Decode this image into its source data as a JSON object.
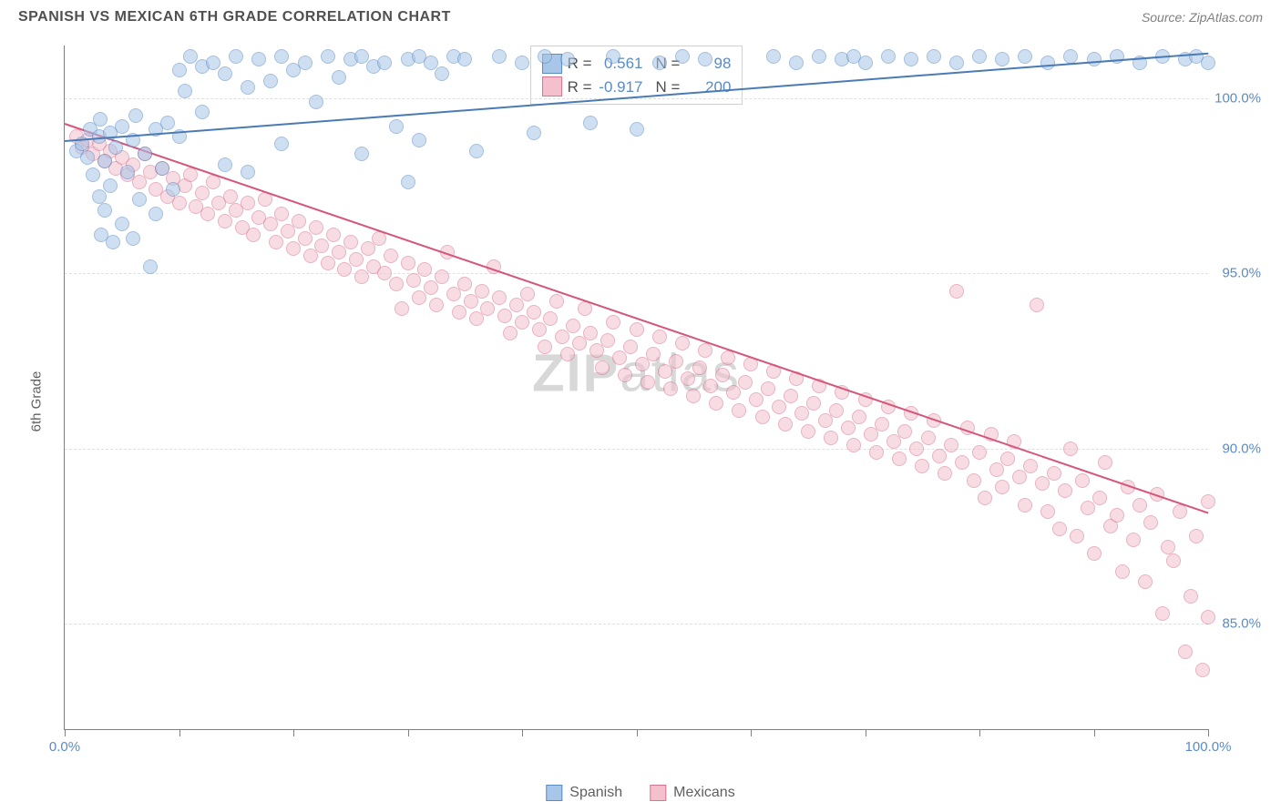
{
  "title": "SPANISH VS MEXICAN 6TH GRADE CORRELATION CHART",
  "source": "Source: ZipAtlas.com",
  "y_axis_label": "6th Grade",
  "watermark_a": "ZIP",
  "watermark_b": "atlas",
  "chart": {
    "type": "scatter",
    "background_color": "#ffffff",
    "grid_color": "#e0e0e0",
    "axis_color": "#808080",
    "tick_label_color": "#5b8bc5",
    "xlim": [
      0,
      100
    ],
    "ylim": [
      82,
      101.5
    ],
    "x_ticks": [
      0,
      10,
      20,
      30,
      40,
      50,
      60,
      70,
      80,
      90,
      100
    ],
    "x_tick_labels": {
      "0": "0.0%",
      "100": "100.0%"
    },
    "y_ticks": [
      85,
      90,
      95,
      100
    ],
    "y_tick_labels": {
      "85": "85.0%",
      "90": "90.0%",
      "95": "95.0%",
      "100": "100.0%"
    },
    "point_radius": 8,
    "point_opacity": 0.55,
    "series": {
      "spanish": {
        "label": "Spanish",
        "color": "#7ba8d6",
        "fill": "#a8c6e8",
        "border": "#5b8bc5",
        "R": "0.561",
        "N": "98",
        "trend": {
          "x1": 0,
          "y1": 98.8,
          "x2": 100,
          "y2": 101.3,
          "color": "#4a7bb5",
          "width": 2
        },
        "points": [
          [
            1,
            98.5
          ],
          [
            1.5,
            98.7
          ],
          [
            2,
            98.3
          ],
          [
            2.2,
            99.1
          ],
          [
            2.5,
            97.8
          ],
          [
            3,
            98.9
          ],
          [
            3,
            97.2
          ],
          [
            3.1,
            99.4
          ],
          [
            3.2,
            96.1
          ],
          [
            3.5,
            98.2
          ],
          [
            3.5,
            96.8
          ],
          [
            4,
            99.0
          ],
          [
            4,
            97.5
          ],
          [
            4.2,
            95.9
          ],
          [
            4.5,
            98.6
          ],
          [
            5,
            99.2
          ],
          [
            5,
            96.4
          ],
          [
            5.5,
            97.9
          ],
          [
            6,
            98.8
          ],
          [
            6,
            96.0
          ],
          [
            6.2,
            99.5
          ],
          [
            6.5,
            97.1
          ],
          [
            7,
            98.4
          ],
          [
            7.5,
            95.2
          ],
          [
            8,
            99.1
          ],
          [
            8,
            96.7
          ],
          [
            8.5,
            98.0
          ],
          [
            9,
            99.3
          ],
          [
            9.5,
            97.4
          ],
          [
            10,
            98.9
          ],
          [
            10,
            100.8
          ],
          [
            10.5,
            100.2
          ],
          [
            11,
            101.2
          ],
          [
            12,
            100.9
          ],
          [
            12,
            99.6
          ],
          [
            13,
            101.0
          ],
          [
            14,
            98.1
          ],
          [
            14,
            100.7
          ],
          [
            15,
            101.2
          ],
          [
            16,
            100.3
          ],
          [
            16,
            97.9
          ],
          [
            17,
            101.1
          ],
          [
            18,
            100.5
          ],
          [
            19,
            98.7
          ],
          [
            19,
            101.2
          ],
          [
            20,
            100.8
          ],
          [
            21,
            101.0
          ],
          [
            22,
            99.9
          ],
          [
            23,
            101.2
          ],
          [
            24,
            100.6
          ],
          [
            25,
            101.1
          ],
          [
            26,
            98.4
          ],
          [
            26,
            101.2
          ],
          [
            27,
            100.9
          ],
          [
            28,
            101.0
          ],
          [
            29,
            99.2
          ],
          [
            30,
            101.1
          ],
          [
            30,
            97.6
          ],
          [
            31,
            101.2
          ],
          [
            31,
            98.8
          ],
          [
            32,
            101.0
          ],
          [
            33,
            100.7
          ],
          [
            34,
            101.2
          ],
          [
            35,
            101.1
          ],
          [
            36,
            98.5
          ],
          [
            38,
            101.2
          ],
          [
            40,
            101.0
          ],
          [
            41,
            99.0
          ],
          [
            42,
            101.2
          ],
          [
            44,
            101.1
          ],
          [
            46,
            99.3
          ],
          [
            48,
            101.2
          ],
          [
            50,
            99.1
          ],
          [
            52,
            101.0
          ],
          [
            54,
            101.2
          ],
          [
            56,
            101.1
          ],
          [
            62,
            101.2
          ],
          [
            64,
            101.0
          ],
          [
            66,
            101.2
          ],
          [
            68,
            101.1
          ],
          [
            69,
            101.2
          ],
          [
            70,
            101.0
          ],
          [
            72,
            101.2
          ],
          [
            74,
            101.1
          ],
          [
            76,
            101.2
          ],
          [
            78,
            101.0
          ],
          [
            80,
            101.2
          ],
          [
            82,
            101.1
          ],
          [
            84,
            101.2
          ],
          [
            86,
            101.0
          ],
          [
            88,
            101.2
          ],
          [
            90,
            101.1
          ],
          [
            92,
            101.2
          ],
          [
            94,
            101.0
          ],
          [
            96,
            101.2
          ],
          [
            98,
            101.1
          ],
          [
            99,
            101.2
          ],
          [
            100,
            101.0
          ]
        ]
      },
      "mexicans": {
        "label": "Mexicans",
        "color": "#e89aad",
        "fill": "#f4c0ce",
        "border": "#d67590",
        "R": "-0.917",
        "N": "200",
        "trend": {
          "x1": 0,
          "y1": 99.3,
          "x2": 100,
          "y2": 88.2,
          "color": "#d6557a",
          "width": 2
        },
        "points": [
          [
            1,
            98.9
          ],
          [
            1.5,
            98.6
          ],
          [
            2,
            98.8
          ],
          [
            2.5,
            98.4
          ],
          [
            3,
            98.7
          ],
          [
            3.5,
            98.2
          ],
          [
            4,
            98.5
          ],
          [
            4.5,
            98.0
          ],
          [
            5,
            98.3
          ],
          [
            5.5,
            97.8
          ],
          [
            6,
            98.1
          ],
          [
            6.5,
            97.6
          ],
          [
            7,
            98.4
          ],
          [
            7.5,
            97.9
          ],
          [
            8,
            97.4
          ],
          [
            8.5,
            98.0
          ],
          [
            9,
            97.2
          ],
          [
            9.5,
            97.7
          ],
          [
            10,
            97.0
          ],
          [
            10.5,
            97.5
          ],
          [
            11,
            97.8
          ],
          [
            11.5,
            96.9
          ],
          [
            12,
            97.3
          ],
          [
            12.5,
            96.7
          ],
          [
            13,
            97.6
          ],
          [
            13.5,
            97.0
          ],
          [
            14,
            96.5
          ],
          [
            14.5,
            97.2
          ],
          [
            15,
            96.8
          ],
          [
            15.5,
            96.3
          ],
          [
            16,
            97.0
          ],
          [
            16.5,
            96.1
          ],
          [
            17,
            96.6
          ],
          [
            17.5,
            97.1
          ],
          [
            18,
            96.4
          ],
          [
            18.5,
            95.9
          ],
          [
            19,
            96.7
          ],
          [
            19.5,
            96.2
          ],
          [
            20,
            95.7
          ],
          [
            20.5,
            96.5
          ],
          [
            21,
            96.0
          ],
          [
            21.5,
            95.5
          ],
          [
            22,
            96.3
          ],
          [
            22.5,
            95.8
          ],
          [
            23,
            95.3
          ],
          [
            23.5,
            96.1
          ],
          [
            24,
            95.6
          ],
          [
            24.5,
            95.1
          ],
          [
            25,
            95.9
          ],
          [
            25.5,
            95.4
          ],
          [
            26,
            94.9
          ],
          [
            26.5,
            95.7
          ],
          [
            27,
            95.2
          ],
          [
            27.5,
            96.0
          ],
          [
            28,
            95.0
          ],
          [
            28.5,
            95.5
          ],
          [
            29,
            94.7
          ],
          [
            29.5,
            94.0
          ],
          [
            30,
            95.3
          ],
          [
            30.5,
            94.8
          ],
          [
            31,
            94.3
          ],
          [
            31.5,
            95.1
          ],
          [
            32,
            94.6
          ],
          [
            32.5,
            94.1
          ],
          [
            33,
            94.9
          ],
          [
            33.5,
            95.6
          ],
          [
            34,
            94.4
          ],
          [
            34.5,
            93.9
          ],
          [
            35,
            94.7
          ],
          [
            35.5,
            94.2
          ],
          [
            36,
            93.7
          ],
          [
            36.5,
            94.5
          ],
          [
            37,
            94.0
          ],
          [
            37.5,
            95.2
          ],
          [
            38,
            94.3
          ],
          [
            38.5,
            93.8
          ],
          [
            39,
            93.3
          ],
          [
            39.5,
            94.1
          ],
          [
            40,
            93.6
          ],
          [
            40.5,
            94.4
          ],
          [
            41,
            93.9
          ],
          [
            41.5,
            93.4
          ],
          [
            42,
            92.9
          ],
          [
            42.5,
            93.7
          ],
          [
            43,
            94.2
          ],
          [
            43.5,
            93.2
          ],
          [
            44,
            92.7
          ],
          [
            44.5,
            93.5
          ],
          [
            45,
            93.0
          ],
          [
            45.5,
            94.0
          ],
          [
            46,
            93.3
          ],
          [
            46.5,
            92.8
          ],
          [
            47,
            92.3
          ],
          [
            47.5,
            93.1
          ],
          [
            48,
            93.6
          ],
          [
            48.5,
            92.6
          ],
          [
            49,
            92.1
          ],
          [
            49.5,
            92.9
          ],
          [
            50,
            93.4
          ],
          [
            50.5,
            92.4
          ],
          [
            51,
            91.9
          ],
          [
            51.5,
            92.7
          ],
          [
            52,
            93.2
          ],
          [
            52.5,
            92.2
          ],
          [
            53,
            91.7
          ],
          [
            53.5,
            92.5
          ],
          [
            54,
            93.0
          ],
          [
            54.5,
            92.0
          ],
          [
            55,
            91.5
          ],
          [
            55.5,
            92.3
          ],
          [
            56,
            92.8
          ],
          [
            56.5,
            91.8
          ],
          [
            57,
            91.3
          ],
          [
            57.5,
            92.1
          ],
          [
            58,
            92.6
          ],
          [
            58.5,
            91.6
          ],
          [
            59,
            91.1
          ],
          [
            59.5,
            91.9
          ],
          [
            60,
            92.4
          ],
          [
            60.5,
            91.4
          ],
          [
            61,
            90.9
          ],
          [
            61.5,
            91.7
          ],
          [
            62,
            92.2
          ],
          [
            62.5,
            91.2
          ],
          [
            63,
            90.7
          ],
          [
            63.5,
            91.5
          ],
          [
            64,
            92.0
          ],
          [
            64.5,
            91.0
          ],
          [
            65,
            90.5
          ],
          [
            65.5,
            91.3
          ],
          [
            66,
            91.8
          ],
          [
            66.5,
            90.8
          ],
          [
            67,
            90.3
          ],
          [
            67.5,
            91.1
          ],
          [
            68,
            91.6
          ],
          [
            68.5,
            90.6
          ],
          [
            69,
            90.1
          ],
          [
            69.5,
            90.9
          ],
          [
            70,
            91.4
          ],
          [
            70.5,
            90.4
          ],
          [
            71,
            89.9
          ],
          [
            71.5,
            90.7
          ],
          [
            72,
            91.2
          ],
          [
            72.5,
            90.2
          ],
          [
            73,
            89.7
          ],
          [
            73.5,
            90.5
          ],
          [
            74,
            91.0
          ],
          [
            74.5,
            90.0
          ],
          [
            75,
            89.5
          ],
          [
            75.5,
            90.3
          ],
          [
            76,
            90.8
          ],
          [
            76.5,
            89.8
          ],
          [
            77,
            89.3
          ],
          [
            77.5,
            90.1
          ],
          [
            78,
            94.5
          ],
          [
            78.5,
            89.6
          ],
          [
            79,
            90.6
          ],
          [
            79.5,
            89.1
          ],
          [
            80,
            89.9
          ],
          [
            80.5,
            88.6
          ],
          [
            81,
            90.4
          ],
          [
            81.5,
            89.4
          ],
          [
            82,
            88.9
          ],
          [
            82.5,
            89.7
          ],
          [
            83,
            90.2
          ],
          [
            83.5,
            89.2
          ],
          [
            84,
            88.4
          ],
          [
            84.5,
            89.5
          ],
          [
            85,
            94.1
          ],
          [
            85.5,
            89.0
          ],
          [
            86,
            88.2
          ],
          [
            86.5,
            89.3
          ],
          [
            87,
            87.7
          ],
          [
            87.5,
            88.8
          ],
          [
            88,
            90.0
          ],
          [
            88.5,
            87.5
          ],
          [
            89,
            89.1
          ],
          [
            89.5,
            88.3
          ],
          [
            90,
            87.0
          ],
          [
            90.5,
            88.6
          ],
          [
            91,
            89.6
          ],
          [
            91.5,
            87.8
          ],
          [
            92,
            88.1
          ],
          [
            92.5,
            86.5
          ],
          [
            93,
            88.9
          ],
          [
            93.5,
            87.4
          ],
          [
            94,
            88.4
          ],
          [
            94.5,
            86.2
          ],
          [
            95,
            87.9
          ],
          [
            95.5,
            88.7
          ],
          [
            96,
            85.3
          ],
          [
            96.5,
            87.2
          ],
          [
            97,
            86.8
          ],
          [
            97.5,
            88.2
          ],
          [
            98,
            84.2
          ],
          [
            98.5,
            85.8
          ],
          [
            99,
            87.5
          ],
          [
            99.5,
            83.7
          ],
          [
            100,
            85.2
          ],
          [
            100,
            88.5
          ]
        ]
      }
    }
  },
  "legend_labels": {
    "R": "R =",
    "N": "N ="
  }
}
